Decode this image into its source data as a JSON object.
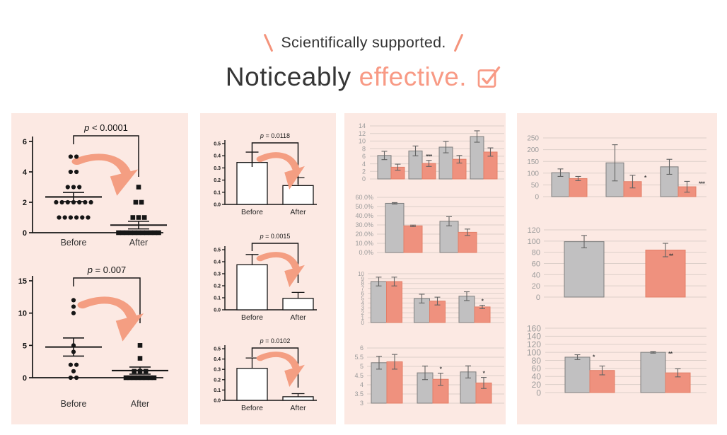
{
  "header": {
    "tagline": "Scientifically supported.",
    "title_dark": "Noticeably",
    "title_accent": "effective."
  },
  "colors": {
    "accent_title": "#F89A85",
    "arrow": "#F49E82",
    "panel_bg": "#FCE9E3",
    "bar_salmon": "#EF917E",
    "bar_salmon_border": "#E37E67",
    "bar_gray": "#C1C0C1",
    "bar_gray_border": "#7E7E7E",
    "grid": "#DCCFC9",
    "tick_text": "#9B9B9B",
    "ink": "#161616",
    "error": "#636363",
    "star": "#3D3D3D"
  },
  "chart_data": [
    {
      "id": "p1a",
      "panel": "p1",
      "type": "dot-plot",
      "p_label": "p < 0.0001",
      "categories": [
        "Before",
        "After"
      ],
      "ylim": [
        0,
        6
      ],
      "yticks": [
        0,
        2,
        4,
        6
      ],
      "groups": [
        {
          "marker": "circle",
          "mean": 2.35,
          "sem": 0.3,
          "rows": [
            [
              5,
              2
            ],
            [
              4,
              2
            ],
            [
              3,
              3
            ],
            [
              2,
              7
            ],
            [
              1,
              6
            ]
          ]
        },
        {
          "marker": "square",
          "mean": 0.5,
          "sem": 0.25,
          "rows": [
            [
              3,
              1
            ],
            [
              2,
              2
            ],
            [
              1,
              3
            ],
            [
              0,
              11
            ]
          ]
        }
      ]
    },
    {
      "id": "p1b",
      "panel": "p1",
      "type": "dot-plot",
      "p_label": "p = 0.007",
      "categories": [
        "Before",
        "After"
      ],
      "ylim": [
        0,
        15
      ],
      "yticks": [
        0,
        5,
        10,
        15
      ],
      "groups": [
        {
          "marker": "circle",
          "mean": 4.75,
          "sem": 1.4,
          "rows": [
            [
              12,
              1
            ],
            [
              11,
              1
            ],
            [
              10,
              1
            ],
            [
              5,
              1
            ],
            [
              4,
              1
            ],
            [
              2,
              2
            ],
            [
              1,
              1
            ],
            [
              0,
              2
            ]
          ]
        },
        {
          "marker": "square",
          "mean": 1.1,
          "sem": 0.55,
          "rows": [
            [
              5,
              1
            ],
            [
              3,
              1
            ],
            [
              1,
              3
            ],
            [
              0,
              8
            ]
          ]
        }
      ]
    },
    {
      "id": "p2a",
      "panel": "p2",
      "type": "bar-pair",
      "p_label": "p = 0.0118",
      "categories": [
        "Before",
        "After"
      ],
      "ylim": [
        0,
        0.5
      ],
      "yticks": [
        0,
        0.1,
        0.2,
        0.3,
        0.4,
        0.5
      ],
      "ytick_labels": [
        "0.0",
        "0.1",
        "0.2",
        "0.3",
        "0.4",
        "0.5"
      ],
      "values": [
        0.345,
        0.155
      ],
      "errors": [
        0.085,
        0.065
      ]
    },
    {
      "id": "p2b",
      "panel": "p2",
      "type": "bar-pair",
      "p_label": "p = 0.0015",
      "categories": [
        "Before",
        "After"
      ],
      "ylim": [
        0,
        0.5
      ],
      "yticks": [
        0,
        0.1,
        0.2,
        0.3,
        0.4,
        0.5
      ],
      "ytick_labels": [
        "0.0",
        "0.1",
        "0.2",
        "0.3",
        "0.4",
        "0.5"
      ],
      "values": [
        0.375,
        0.095
      ],
      "errors": [
        0.085,
        0.05
      ]
    },
    {
      "id": "p2c",
      "panel": "p2",
      "type": "bar-pair",
      "p_label": "p = 0.0102",
      "categories": [
        "Before",
        "After"
      ],
      "ylim": [
        0,
        0.5
      ],
      "yticks": [
        0,
        0.1,
        0.2,
        0.3,
        0.4,
        0.5
      ],
      "ytick_labels": [
        "0.0",
        "0.1",
        "0.2",
        "0.3",
        "0.4",
        "0.5"
      ],
      "values": [
        0.31,
        0.035
      ],
      "errors": [
        0.1,
        0.03
      ]
    },
    {
      "id": "p3a",
      "panel": "p3",
      "type": "bar-group",
      "ylim": [
        0,
        14
      ],
      "yticks": [
        0,
        2,
        4,
        6,
        8,
        10,
        12,
        14
      ],
      "ytick_labels": [
        "0",
        "2",
        "4",
        "6",
        "8",
        "10",
        "12",
        "14"
      ],
      "series": [
        {
          "color": "gray",
          "values": [
            6.2,
            7.4,
            8.4,
            11.2
          ],
          "errors": [
            1.1,
            1.3,
            1.5,
            1.5
          ]
        },
        {
          "color": "salmon",
          "values": [
            3.1,
            4.1,
            5.2,
            7.1
          ],
          "errors": [
            0.8,
            0.8,
            1.0,
            1.1
          ]
        }
      ],
      "stars": [
        {
          "series": 1,
          "group": 1,
          "label": "***",
          "place": "above"
        }
      ]
    },
    {
      "id": "p3b",
      "panel": "p3",
      "type": "bar-group",
      "ylim": [
        0,
        60
      ],
      "yticks": [
        0,
        10,
        20,
        30,
        40,
        50,
        60
      ],
      "ytick_labels": [
        "0.0%",
        "10.0%",
        "20.0%",
        "30.0%",
        "40.0%",
        "50.0%",
        "60.0%"
      ],
      "series": [
        {
          "color": "gray",
          "values": [
            53.5,
            34
          ],
          "errors": [
            0.8,
            5
          ]
        },
        {
          "color": "salmon",
          "values": [
            29,
            22
          ],
          "errors": [
            0.8,
            3.5
          ]
        }
      ],
      "stars": []
    },
    {
      "id": "p3c",
      "panel": "p3",
      "type": "bar-group",
      "ylim": [
        0,
        10
      ],
      "yticks": [
        0,
        1,
        2,
        3,
        4,
        5,
        6,
        7,
        8,
        9,
        10
      ],
      "ytick_labels": [
        "0",
        "1",
        "2",
        "3",
        "4",
        "5",
        "6",
        "7",
        "8",
        "9",
        "10"
      ],
      "series": [
        {
          "color": "gray",
          "values": [
            8.4,
            4.9,
            5.4
          ],
          "errors": [
            0.9,
            0.9,
            0.9
          ]
        },
        {
          "color": "salmon",
          "values": [
            8.4,
            4.4,
            3.2
          ],
          "errors": [
            0.9,
            0.8,
            0.35
          ]
        }
      ],
      "stars": [
        {
          "series": 1,
          "group": 2,
          "label": "*",
          "place": "above"
        }
      ]
    },
    {
      "id": "p3d",
      "panel": "p3",
      "type": "bar-group",
      "ylim": [
        3,
        6
      ],
      "yticks": [
        3,
        3.5,
        4,
        4.5,
        5,
        5.5,
        6
      ],
      "ytick_labels": [
        "3",
        "3.5",
        "4",
        "4.5",
        "5",
        "5.5",
        "6"
      ],
      "series": [
        {
          "color": "gray",
          "values": [
            5.2,
            4.65,
            4.7
          ],
          "errors": [
            0.35,
            0.37,
            0.33
          ]
        },
        {
          "color": "salmon",
          "values": [
            5.25,
            4.3,
            4.1
          ],
          "errors": [
            0.4,
            0.33,
            0.3
          ]
        }
      ],
      "stars": [
        {
          "series": 1,
          "group": 1,
          "label": "*",
          "place": "above"
        },
        {
          "series": 1,
          "group": 2,
          "label": "*",
          "place": "above"
        }
      ]
    },
    {
      "id": "p4a",
      "panel": "p4",
      "type": "bar-group",
      "ylim": [
        0,
        250
      ],
      "yticks": [
        0,
        50,
        100,
        150,
        200,
        250
      ],
      "ytick_labels": [
        "0",
        "50",
        "100",
        "150",
        "200",
        "250"
      ],
      "series": [
        {
          "color": "gray",
          "values": [
            102,
            144,
            127
          ],
          "errors": [
            16,
            77,
            32
          ]
        },
        {
          "color": "salmon",
          "values": [
            77,
            64,
            42
          ],
          "errors": [
            9,
            27,
            23
          ]
        }
      ],
      "stars": [
        {
          "series": 1,
          "group": 1,
          "label": "*",
          "place": "side"
        },
        {
          "series": 1,
          "group": 2,
          "label": "***",
          "place": "side"
        }
      ]
    },
    {
      "id": "p4b",
      "panel": "p4",
      "type": "bar-group",
      "ylim": [
        0,
        120
      ],
      "yticks": [
        0,
        20,
        40,
        60,
        80,
        100,
        120
      ],
      "ytick_labels": [
        "0",
        "20",
        "40",
        "60",
        "80",
        "100",
        "120"
      ],
      "series": [
        {
          "color": "gray",
          "values": [
            99,
            null
          ],
          "errors": [
            11,
            null
          ]
        },
        {
          "color": "salmon",
          "values": [
            null,
            84
          ],
          "errors": [
            null,
            12
          ]
        }
      ],
      "stars": [
        {
          "series": 1,
          "group": 1,
          "label": "**",
          "place": "side-low"
        }
      ]
    },
    {
      "id": "p4c",
      "panel": "p4",
      "type": "bar-group",
      "ylim": [
        0,
        160
      ],
      "yticks": [
        0,
        20,
        40,
        60,
        80,
        100,
        120,
        140,
        160
      ],
      "ytick_labels": [
        "0",
        "20",
        "40",
        "60",
        "80",
        "100",
        "120",
        "140",
        "160"
      ],
      "series": [
        {
          "color": "gray",
          "values": [
            88,
            100
          ],
          "errors": [
            6,
            2
          ]
        },
        {
          "color": "salmon",
          "values": [
            55,
            49
          ],
          "errors": [
            11,
            10
          ]
        }
      ],
      "stars": [
        {
          "series": 0,
          "group": 0,
          "label": "*",
          "place": "side"
        },
        {
          "series": 0,
          "group": 1,
          "label": "**",
          "place": "side"
        }
      ]
    }
  ]
}
